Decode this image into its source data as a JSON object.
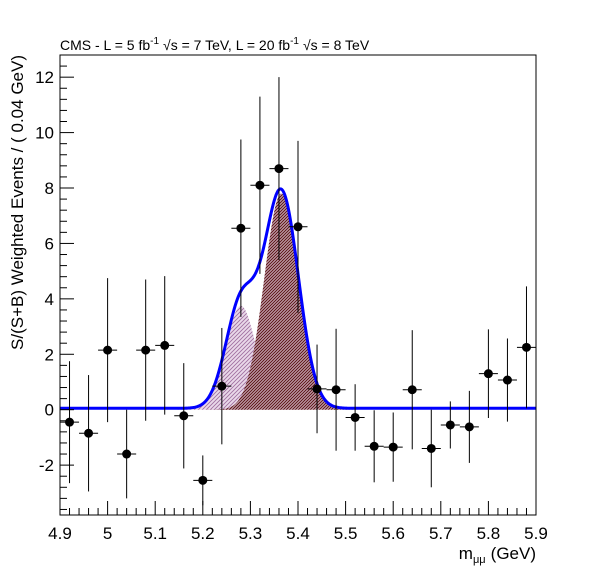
{
  "chart_data": {
    "type": "scatter",
    "title": "CMS - L = 5 fb",
    "title_parts": {
      "text1": "CMS - L = 5 fb",
      "sup1": "-1",
      "text2": "√s = 7 TeV, L = 20 fb",
      "sup2": "-1",
      "text3": "√s = 8 TeV"
    },
    "xlabel": "m",
    "xlabel_sub": "μμ",
    "xlabel_unit": "(GeV)",
    "ylabel": "S/(S+B) Weighted Events / ( 0.04 GeV)",
    "xlim": [
      4.9,
      5.9
    ],
    "ylim": [
      -3.8,
      12.8
    ],
    "x_ticks": [
      4.9,
      5,
      5.1,
      5.2,
      5.3,
      5.4,
      5.5,
      5.6,
      5.7,
      5.8,
      5.9
    ],
    "x_tick_labels": [
      "4.9",
      "5",
      "5.1",
      "5.2",
      "5.3",
      "5.4",
      "5.5",
      "5.6",
      "5.7",
      "5.8",
      "5.9"
    ],
    "y_ticks": [
      -2,
      0,
      2,
      4,
      6,
      8,
      10,
      12
    ],
    "y_tick_labels": [
      "-2",
      "0",
      "2",
      "4",
      "6",
      "8",
      "10",
      "12"
    ],
    "bin_half_width": 0.02,
    "data_points": [
      {
        "x": 4.92,
        "y": -0.45,
        "err_up": 2.2,
        "err_down": 2.2
      },
      {
        "x": 4.96,
        "y": -0.85,
        "err_up": 2.1,
        "err_down": 2.1
      },
      {
        "x": 5.0,
        "y": 2.15,
        "err_up": 2.6,
        "err_down": 2.6
      },
      {
        "x": 5.04,
        "y": -1.6,
        "err_up": 1.6,
        "err_down": 1.6
      },
      {
        "x": 5.08,
        "y": 2.15,
        "err_up": 2.55,
        "err_down": 2.55
      },
      {
        "x": 5.12,
        "y": 2.32,
        "err_up": 2.5,
        "err_down": 2.5
      },
      {
        "x": 5.16,
        "y": -0.22,
        "err_up": 1.9,
        "err_down": 1.9
      },
      {
        "x": 5.2,
        "y": -2.55,
        "err_up": 0.9,
        "err_down": 0.9
      },
      {
        "x": 5.24,
        "y": 0.85,
        "err_up": 2.1,
        "err_down": 2.1
      },
      {
        "x": 5.28,
        "y": 6.55,
        "err_up": 3.2,
        "err_down": 3.2
      },
      {
        "x": 5.32,
        "y": 8.1,
        "err_up": 3.2,
        "err_down": 3.2
      },
      {
        "x": 5.36,
        "y": 8.7,
        "err_up": 3.3,
        "err_down": 3.3
      },
      {
        "x": 5.4,
        "y": 6.6,
        "err_up": 3.1,
        "err_down": 3.1
      },
      {
        "x": 5.44,
        "y": 0.75,
        "err_up": 1.6,
        "err_down": 1.6
      },
      {
        "x": 5.48,
        "y": 0.72,
        "err_up": 2.2,
        "err_down": 2.2
      },
      {
        "x": 5.52,
        "y": -0.28,
        "err_up": 1.2,
        "err_down": 1.2
      },
      {
        "x": 5.56,
        "y": -1.32,
        "err_up": 1.3,
        "err_down": 1.3
      },
      {
        "x": 5.6,
        "y": -1.35,
        "err_up": 1.25,
        "err_down": 1.25
      },
      {
        "x": 5.64,
        "y": 0.72,
        "err_up": 2.15,
        "err_down": 2.15
      },
      {
        "x": 5.68,
        "y": -1.4,
        "err_up": 1.4,
        "err_down": 1.4
      },
      {
        "x": 5.72,
        "y": -0.55,
        "err_up": 0.85,
        "err_down": 0.85
      },
      {
        "x": 5.76,
        "y": -0.62,
        "err_up": 1.3,
        "err_down": 1.3
      },
      {
        "x": 5.8,
        "y": 1.3,
        "err_up": 1.6,
        "err_down": 1.6
      },
      {
        "x": 5.84,
        "y": 1.07,
        "err_up": 1.5,
        "err_down": 1.5
      },
      {
        "x": 5.88,
        "y": 2.25,
        "err_up": 2.2,
        "err_down": 2.2
      }
    ],
    "components": [
      {
        "shape": "gaussian",
        "mean": 5.28,
        "sigma": 0.032,
        "amplitude": 3.75,
        "color": "#b38fb3",
        "pattern": "light-diagonal-hatch"
      },
      {
        "shape": "gaussian",
        "mean": 5.365,
        "sigma": 0.036,
        "amplitude": 7.8,
        "color": "#6b1f1f",
        "pattern": "dense-diagonal-hatch"
      }
    ],
    "background_level": 0.05,
    "fit_color": "#0000ff",
    "marker_color": "#000000",
    "grid": false,
    "legend": "none"
  }
}
